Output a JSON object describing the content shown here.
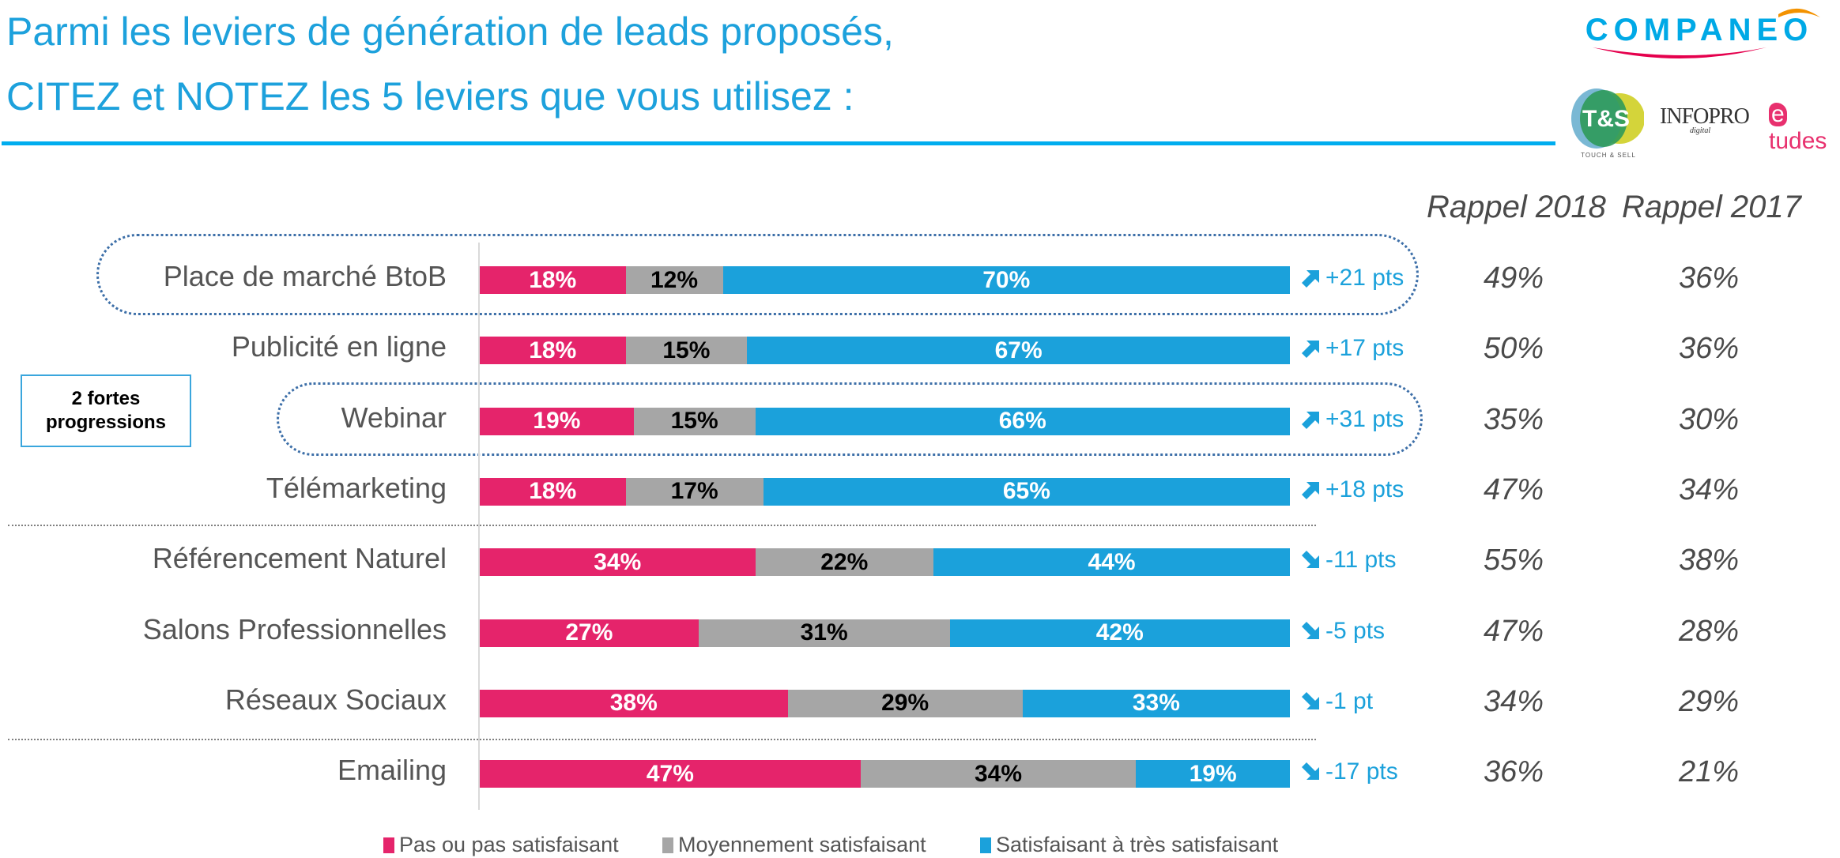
{
  "title": {
    "line1": "Parmi les leviers de génération de leads proposés,",
    "line2": "CITEZ et NOTEZ les 5 leviers que vous utilisez :"
  },
  "logos": {
    "companeo": "COMPANEO",
    "ts": "T&S",
    "ts_sub": "TOUCH & SELL",
    "infopro": "INFOPRO",
    "infopro_sub": "digital",
    "etudes_e": "e",
    "etudes_rest": "tudes"
  },
  "note_box": {
    "line1": "2 fortes",
    "line2": "progressions"
  },
  "colors": {
    "pas_satisfaisant": "#e5246b",
    "moyennement": "#a6a6a6",
    "satisfaisant": "#1ba1db",
    "title": "#1da1dc",
    "outline": "#3d6fa8"
  },
  "chart_data": {
    "type": "bar",
    "orientation": "horizontal-stacked-100",
    "title": "Parmi les leviers de génération de leads proposés, CITEZ et NOTEZ les 5 leviers que vous utilisez :",
    "xlabel": "",
    "ylabel": "",
    "xlim": [
      0,
      100
    ],
    "grid": false,
    "legend_position": "bottom",
    "categories": [
      "Place de marché BtoB",
      "Publicité en ligne",
      "Webinar",
      "Télémarketing",
      "Référencement Naturel",
      "Salons Professionnelles",
      "Réseaux Sociaux",
      "Emailing"
    ],
    "series": [
      {
        "name": "Pas ou pas satisfaisant",
        "color": "#e5246b",
        "values": [
          18,
          18,
          19,
          18,
          34,
          27,
          38,
          47
        ],
        "labels": [
          "18%",
          "18%",
          "19%",
          "18%",
          "34%",
          "27%",
          "38%",
          "47%"
        ]
      },
      {
        "name": "Moyennement satisfaisant",
        "color": "#a6a6a6",
        "values": [
          12,
          15,
          15,
          17,
          22,
          31,
          29,
          34
        ],
        "labels": [
          "12%",
          "15%",
          "15%",
          "17%",
          "22%",
          "31%",
          "29%",
          "34%"
        ]
      },
      {
        "name": "Satisfaisant à très satisfaisant",
        "color": "#1ba1db",
        "values": [
          70,
          67,
          66,
          65,
          44,
          42,
          33,
          19
        ],
        "labels": [
          "70%",
          "67%",
          "66%",
          "65%",
          "44%",
          "42%",
          "33%",
          "19%"
        ]
      }
    ],
    "change": [
      {
        "direction": "up",
        "label": "+21 pts"
      },
      {
        "direction": "up",
        "label": "+17 pts"
      },
      {
        "direction": "up",
        "label": "+31 pts"
      },
      {
        "direction": "up",
        "label": "+18 pts"
      },
      {
        "direction": "down",
        "label": "-11 pts"
      },
      {
        "direction": "down",
        "label": "-5 pts"
      },
      {
        "direction": "down",
        "label": "-1 pt"
      },
      {
        "direction": "down",
        "label": "-17 pts"
      }
    ],
    "rappel_headers": [
      "Rappel 2018",
      "Rappel 2017"
    ],
    "rappel_2018": [
      "49%",
      "50%",
      "35%",
      "47%",
      "55%",
      "47%",
      "34%",
      "36%"
    ],
    "rappel_2017": [
      "36%",
      "36%",
      "30%",
      "34%",
      "38%",
      "28%",
      "29%",
      "21%"
    ],
    "highlighted": [
      "Place de marché BtoB",
      "Webinar"
    ],
    "group_separators_after": [
      "Télémarketing",
      "Réseaux Sociaux"
    ]
  }
}
